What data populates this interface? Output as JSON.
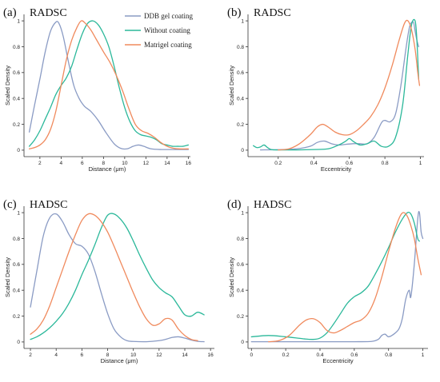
{
  "legend": [
    {
      "name": "DDB gel coating",
      "color": "#8a9bc4"
    },
    {
      "name": "Without coating",
      "color": "#2bb89a"
    },
    {
      "name": "Matrigel coating",
      "color": "#f08a5d"
    }
  ],
  "chart_data": [
    {
      "type": "line",
      "panel": "(a)",
      "title": "RADSC",
      "xlabel": "Distance (μm)",
      "ylabel": "Scaled Density",
      "xlim": [
        0.5,
        16.2
      ],
      "ylim": [
        -0.05,
        1.05
      ],
      "xticks": [
        2,
        4,
        6,
        8,
        10,
        12,
        14,
        16
      ],
      "yticks": [
        0,
        0.2,
        0.4,
        0.6,
        0.8,
        1
      ],
      "ytick_labels": [
        "0",
        "0.2",
        "0.4",
        "0.6",
        "0.8",
        "1"
      ],
      "grid": false,
      "legend_position": "top-right",
      "series": [
        {
          "name": "DDB gel coating",
          "color": "#8a9bc4",
          "x": [
            1,
            1.5,
            2,
            2.5,
            3,
            3.5,
            3.8,
            4.2,
            4.7,
            5.2,
            5.7,
            6.2,
            6.8,
            7.5,
            8.2,
            9,
            9.6,
            10.2,
            10.8,
            11.3,
            11.8,
            12.5,
            13.5,
            14.5,
            15.5,
            16
          ],
          "y": [
            0.14,
            0.35,
            0.55,
            0.76,
            0.92,
            0.99,
            0.98,
            0.88,
            0.68,
            0.5,
            0.4,
            0.34,
            0.3,
            0.23,
            0.14,
            0.05,
            0.015,
            0.01,
            0.03,
            0.04,
            0.03,
            0.01,
            0.005,
            0.005,
            0.005,
            0.005
          ]
        },
        {
          "name": "Without coating",
          "color": "#2bb89a",
          "x": [
            1,
            1.5,
            2,
            2.5,
            3,
            3.5,
            4,
            4.5,
            5,
            5.5,
            6,
            6.5,
            7,
            7.5,
            8,
            8.5,
            9,
            9.5,
            10,
            10.5,
            11,
            11.5,
            12,
            12.5,
            13,
            13.5,
            14,
            14.5,
            15,
            15.5,
            16
          ],
          "y": [
            0.03,
            0.08,
            0.15,
            0.24,
            0.33,
            0.43,
            0.5,
            0.56,
            0.65,
            0.78,
            0.9,
            0.98,
            1.0,
            0.97,
            0.9,
            0.8,
            0.65,
            0.48,
            0.33,
            0.22,
            0.15,
            0.12,
            0.11,
            0.1,
            0.08,
            0.05,
            0.04,
            0.03,
            0.03,
            0.03,
            0.04
          ]
        },
        {
          "name": "Matrigel coating",
          "color": "#f08a5d",
          "x": [
            1,
            1.5,
            2,
            2.5,
            3,
            3.5,
            4,
            4.5,
            5,
            5.5,
            5.9,
            6.3,
            6.8,
            7.3,
            8,
            8.6,
            9.2,
            9.8,
            10.4,
            11,
            11.6,
            12.2,
            12.8,
            13.4,
            14,
            14.6,
            15.2,
            16
          ],
          "y": [
            0.01,
            0.02,
            0.04,
            0.08,
            0.16,
            0.3,
            0.5,
            0.7,
            0.85,
            0.95,
            1.0,
            0.98,
            0.93,
            0.86,
            0.76,
            0.68,
            0.58,
            0.46,
            0.32,
            0.2,
            0.15,
            0.13,
            0.1,
            0.06,
            0.03,
            0.015,
            0.01,
            0.01
          ]
        }
      ]
    },
    {
      "type": "line",
      "panel": "(b)",
      "title": "RADSC",
      "xlabel": "Eccentricity",
      "ylabel": "Scaled Density",
      "xlim": [
        0.03,
        1.02
      ],
      "ylim": [
        -0.05,
        1.05
      ],
      "xticks": [
        0.2,
        0.4,
        0.6,
        0.8,
        1
      ],
      "xtick_labels": [
        "0.2",
        "0.4",
        "0.6",
        "0.8",
        "1"
      ],
      "yticks": [
        0,
        0.2,
        0.4,
        0.6,
        0.8,
        1
      ],
      "ytick_labels": [
        "0",
        "0.2",
        "0.4",
        "0.6",
        "0.8",
        "1"
      ],
      "grid": false,
      "series": [
        {
          "name": "DDB gel coating",
          "color": "#8a9bc4",
          "x": [
            0.1,
            0.2,
            0.3,
            0.38,
            0.42,
            0.46,
            0.5,
            0.54,
            0.58,
            0.62,
            0.66,
            0.7,
            0.74,
            0.78,
            0.8,
            0.83,
            0.86,
            0.89,
            0.92,
            0.94,
            0.96,
            0.97,
            0.98,
            0.99
          ],
          "y": [
            0.002,
            0.004,
            0.01,
            0.03,
            0.06,
            0.07,
            0.05,
            0.04,
            0.045,
            0.05,
            0.05,
            0.05,
            0.1,
            0.21,
            0.23,
            0.22,
            0.28,
            0.5,
            0.8,
            0.96,
            0.99,
            0.92,
            0.85,
            0.8
          ]
        },
        {
          "name": "Without coating",
          "color": "#2bb89a",
          "x": [
            0.06,
            0.08,
            0.1,
            0.12,
            0.14,
            0.16,
            0.2,
            0.3,
            0.4,
            0.48,
            0.54,
            0.58,
            0.6,
            0.62,
            0.66,
            0.7,
            0.74,
            0.78,
            0.82,
            0.86,
            0.9,
            0.93,
            0.95,
            0.97,
            0.98,
            0.99
          ],
          "y": [
            0.035,
            0.02,
            0.025,
            0.04,
            0.02,
            0.005,
            0.002,
            0.002,
            0.005,
            0.01,
            0.04,
            0.07,
            0.09,
            0.07,
            0.04,
            0.05,
            0.07,
            0.03,
            0.03,
            0.1,
            0.35,
            0.75,
            0.97,
            1.0,
            0.85,
            0.55
          ]
        },
        {
          "name": "Matrigel coating",
          "color": "#f08a5d",
          "x": [
            0.2,
            0.26,
            0.32,
            0.38,
            0.42,
            0.45,
            0.48,
            0.52,
            0.56,
            0.6,
            0.64,
            0.68,
            0.72,
            0.76,
            0.8,
            0.84,
            0.88,
            0.91,
            0.93,
            0.95,
            0.97,
            0.985,
            0.995
          ],
          "y": [
            0.002,
            0.01,
            0.05,
            0.12,
            0.18,
            0.2,
            0.18,
            0.14,
            0.12,
            0.12,
            0.15,
            0.2,
            0.26,
            0.35,
            0.48,
            0.65,
            0.85,
            0.98,
            1.0,
            0.93,
            0.78,
            0.6,
            0.5
          ]
        }
      ]
    },
    {
      "type": "line",
      "panel": "(c)",
      "title": "HADSC",
      "xlabel": "Distance (μm)",
      "ylabel": "Scaled Density",
      "xlim": [
        1.5,
        16.3
      ],
      "ylim": [
        -0.05,
        1.05
      ],
      "xticks": [
        2,
        4,
        6,
        8,
        10,
        12,
        14,
        16
      ],
      "yticks": [
        0,
        0.2,
        0.4,
        0.6,
        0.8,
        1
      ],
      "ytick_labels": [
        "0",
        "0.2",
        "0.4",
        "0.6",
        "0.8",
        "1"
      ],
      "grid": false,
      "series": [
        {
          "name": "DDB gel coating",
          "color": "#8a9bc4",
          "x": [
            2,
            2.5,
            3,
            3.5,
            4,
            4.5,
            5,
            5.5,
            6,
            6.5,
            7,
            7.5,
            8,
            8.5,
            9,
            9.5,
            10,
            11,
            12,
            12.5,
            13,
            13.5,
            14,
            14.5,
            15,
            15.5
          ],
          "y": [
            0.27,
            0.55,
            0.82,
            0.96,
            0.99,
            0.93,
            0.83,
            0.76,
            0.74,
            0.68,
            0.55,
            0.38,
            0.22,
            0.1,
            0.04,
            0.01,
            0.004,
            0.002,
            0.01,
            0.02,
            0.035,
            0.04,
            0.03,
            0.015,
            0.005,
            0.002
          ]
        },
        {
          "name": "Without coating",
          "color": "#2bb89a",
          "x": [
            2,
            2.5,
            3,
            3.5,
            4,
            4.5,
            5,
            5.5,
            6,
            6.5,
            7,
            7.5,
            8,
            8.5,
            9,
            9.5,
            10,
            10.5,
            11,
            11.5,
            12,
            12.5,
            13,
            13.5,
            14,
            14.5,
            15,
            15.5
          ],
          "y": [
            0.02,
            0.04,
            0.07,
            0.11,
            0.16,
            0.22,
            0.3,
            0.4,
            0.52,
            0.63,
            0.75,
            0.88,
            0.98,
            0.99,
            0.95,
            0.88,
            0.78,
            0.67,
            0.57,
            0.48,
            0.42,
            0.38,
            0.35,
            0.28,
            0.21,
            0.2,
            0.23,
            0.21
          ]
        },
        {
          "name": "Matrigel coating",
          "color": "#f08a5d",
          "x": [
            2,
            2.5,
            3,
            3.5,
            4,
            4.5,
            5,
            5.5,
            6,
            6.5,
            7,
            7.5,
            8,
            8.5,
            9,
            9.5,
            10,
            10.5,
            11,
            11.5,
            12,
            12.5,
            13,
            13.5,
            14,
            14.5,
            15
          ],
          "y": [
            0.06,
            0.1,
            0.17,
            0.28,
            0.42,
            0.56,
            0.7,
            0.83,
            0.94,
            0.99,
            0.98,
            0.93,
            0.85,
            0.74,
            0.62,
            0.5,
            0.38,
            0.27,
            0.18,
            0.13,
            0.14,
            0.18,
            0.17,
            0.1,
            0.05,
            0.02,
            0.01
          ]
        }
      ]
    },
    {
      "type": "line",
      "panel": "(d)",
      "title": "HADSC",
      "xlabel": "Eccentricity",
      "ylabel": "Scaled Density",
      "xlim": [
        -0.02,
        1.03
      ],
      "ylim": [
        -0.05,
        1.05
      ],
      "xticks": [
        0,
        0.2,
        0.4,
        0.6,
        0.8,
        1
      ],
      "xtick_labels": [
        "0",
        "0.2",
        "0.4",
        "0.6",
        "0.8",
        "1"
      ],
      "yticks": [
        0,
        0.2,
        0.4,
        0.6,
        0.8,
        1
      ],
      "ytick_labels": [
        "0",
        "0.2",
        "0.4",
        "0.6",
        "0.8",
        "1"
      ],
      "grid": false,
      "series": [
        {
          "name": "DDB gel coating",
          "color": "#8a9bc4",
          "x": [
            0.0,
            0.2,
            0.4,
            0.6,
            0.7,
            0.74,
            0.76,
            0.78,
            0.8,
            0.83,
            0.86,
            0.88,
            0.9,
            0.92,
            0.93,
            0.95,
            0.97,
            0.98,
            0.99,
            1.0
          ],
          "y": [
            0.002,
            0.002,
            0.002,
            0.002,
            0.004,
            0.02,
            0.05,
            0.06,
            0.04,
            0.06,
            0.1,
            0.18,
            0.33,
            0.4,
            0.35,
            0.6,
            0.95,
            1.0,
            0.85,
            0.8
          ]
        },
        {
          "name": "Without coating",
          "color": "#2bb89a",
          "x": [
            0.0,
            0.1,
            0.2,
            0.3,
            0.36,
            0.4,
            0.44,
            0.48,
            0.52,
            0.56,
            0.6,
            0.64,
            0.68,
            0.72,
            0.76,
            0.8,
            0.84,
            0.88,
            0.91,
            0.93,
            0.95,
            0.97,
            0.98
          ],
          "y": [
            0.04,
            0.05,
            0.04,
            0.025,
            0.02,
            0.03,
            0.07,
            0.14,
            0.22,
            0.3,
            0.35,
            0.38,
            0.43,
            0.52,
            0.62,
            0.73,
            0.85,
            0.95,
            1.0,
            0.99,
            0.92,
            0.8,
            0.78
          ]
        },
        {
          "name": "Matrigel coating",
          "color": "#f08a5d",
          "x": [
            0.1,
            0.16,
            0.22,
            0.28,
            0.32,
            0.36,
            0.4,
            0.44,
            0.48,
            0.52,
            0.56,
            0.6,
            0.64,
            0.68,
            0.72,
            0.76,
            0.8,
            0.84,
            0.87,
            0.89,
            0.91,
            0.93,
            0.95,
            0.97,
            0.99
          ],
          "y": [
            0.002,
            0.01,
            0.05,
            0.13,
            0.17,
            0.18,
            0.15,
            0.09,
            0.07,
            0.09,
            0.12,
            0.15,
            0.17,
            0.22,
            0.33,
            0.5,
            0.7,
            0.88,
            0.98,
            1.0,
            0.97,
            0.9,
            0.8,
            0.65,
            0.52
          ]
        }
      ]
    }
  ]
}
